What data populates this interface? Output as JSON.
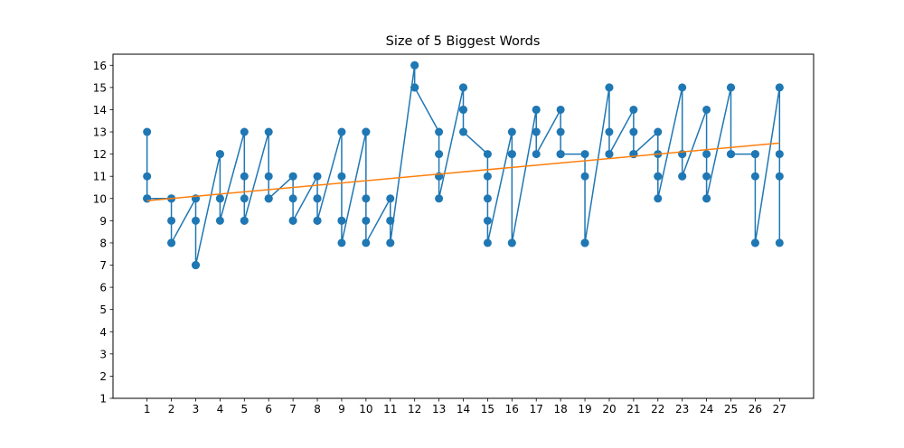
{
  "chart_data": {
    "type": "line",
    "title": "Size of 5 Biggest Words",
    "xlabel": "",
    "ylabel": "",
    "xlim": [
      -0.4,
      28.4
    ],
    "ylim": [
      1,
      16.5
    ],
    "x_ticks": [
      1,
      2,
      3,
      4,
      5,
      6,
      7,
      8,
      9,
      10,
      11,
      12,
      13,
      14,
      15,
      16,
      17,
      18,
      19,
      20,
      21,
      22,
      23,
      24,
      25,
      26,
      27
    ],
    "y_ticks": [
      1,
      2,
      3,
      4,
      5,
      6,
      7,
      8,
      9,
      10,
      11,
      12,
      13,
      14,
      15,
      16
    ],
    "grid": false,
    "series": [
      {
        "color": "#1f77b4",
        "markers": true,
        "x": [
          1,
          1,
          1,
          1,
          1,
          2,
          2,
          2,
          2,
          2,
          3,
          3,
          3,
          3,
          3,
          4,
          4,
          4,
          4,
          4,
          5,
          5,
          5,
          5,
          5,
          6,
          6,
          6,
          6,
          6,
          7,
          7,
          7,
          7,
          7,
          8,
          8,
          8,
          8,
          8,
          9,
          9,
          9,
          9,
          9,
          10,
          10,
          10,
          10,
          10,
          11,
          11,
          11,
          11,
          11,
          12,
          12,
          12,
          12,
          12,
          13,
          13,
          13,
          13,
          13,
          14,
          14,
          14,
          14,
          14,
          15,
          15,
          15,
          15,
          15,
          16,
          16,
          16,
          16,
          16,
          17,
          17,
          17,
          17,
          17,
          18,
          18,
          18,
          18,
          18,
          19,
          19,
          19,
          19,
          19,
          20,
          20,
          20,
          20,
          20,
          21,
          21,
          21,
          21,
          21,
          22,
          22,
          22,
          22,
          22,
          23,
          23,
          23,
          23,
          23,
          24,
          24,
          24,
          24,
          24,
          25,
          25,
          25,
          25,
          25,
          26,
          26,
          26,
          26,
          26,
          27,
          27,
          27,
          27,
          27
        ],
        "y": [
          13,
          11,
          10,
          10,
          10,
          10,
          10,
          9,
          8,
          8,
          10,
          10,
          9,
          7,
          7,
          12,
          12,
          10,
          10,
          9,
          13,
          11,
          10,
          9,
          9,
          13,
          11,
          10,
          10,
          10,
          11,
          11,
          10,
          9,
          9,
          11,
          10,
          10,
          9,
          9,
          13,
          11,
          9,
          9,
          8,
          13,
          13,
          10,
          9,
          8,
          10,
          9,
          9,
          8,
          8,
          16,
          16,
          15,
          15,
          15,
          13,
          12,
          11,
          11,
          10,
          15,
          15,
          14,
          14,
          13,
          12,
          11,
          10,
          9,
          8,
          13,
          12,
          12,
          8,
          8,
          14,
          14,
          13,
          13,
          12,
          14,
          13,
          12,
          12,
          12,
          12,
          11,
          8,
          8,
          8,
          15,
          15,
          13,
          12,
          12,
          14,
          13,
          12,
          12,
          12,
          13,
          12,
          11,
          11,
          10,
          15,
          12,
          12,
          11,
          11,
          14,
          12,
          11,
          10,
          10,
          15,
          15,
          15,
          12,
          12,
          12,
          12,
          11,
          8,
          8,
          15,
          15,
          12,
          11,
          8
        ]
      },
      {
        "color": "#ff7f0e",
        "markers": false,
        "x": [
          1,
          27
        ],
        "y": [
          9.9,
          12.5
        ]
      }
    ]
  }
}
